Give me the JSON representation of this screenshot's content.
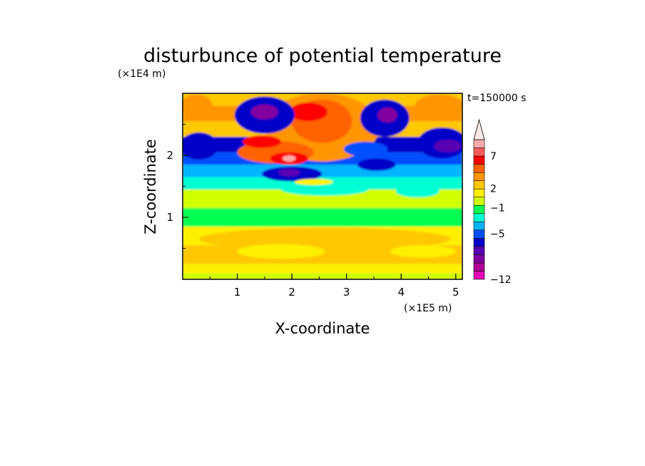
{
  "chart_data": {
    "type": "heatmap",
    "title": "disturbunce of potential temperature",
    "time_label": "t=150000 s",
    "xlabel": "X-coordinate",
    "ylabel": "Z-coordinate",
    "x_unit": "(×1E5 m)",
    "z_unit": "(×1E4 m)",
    "xlim": [
      0,
      5.12
    ],
    "zlim": [
      0,
      3.0
    ],
    "x_ticks": [
      1,
      2,
      3,
      4,
      5
    ],
    "x_tick_labels": [
      "1",
      "2",
      "3",
      "4",
      "5"
    ],
    "z_ticks": [
      1,
      2
    ],
    "z_tick_labels": [
      "1",
      "2"
    ],
    "colorbar": {
      "levels": [
        -12,
        -5,
        -1,
        2,
        7
      ],
      "level_labels": [
        "−12",
        "−5",
        "−1",
        "2",
        "7"
      ],
      "colors": [
        "#e600b4",
        "#b4009a",
        "#8200a0",
        "#5a00b4",
        "#0000c8",
        "#0050ff",
        "#00b4ff",
        "#00ffd2",
        "#00ff50",
        "#d2ff00",
        "#fff000",
        "#ffc800",
        "#ff9600",
        "#ff6400",
        "#ff0000",
        "#ff5a5a",
        "#ffaaaa"
      ],
      "extend_top_color": "#ffe6e6"
    },
    "contour_bands": [
      {
        "zmin": 0.0,
        "zmax": 0.1,
        "color": "#d2ff00"
      },
      {
        "zmin": 0.1,
        "zmax": 0.25,
        "color": "#fff000"
      },
      {
        "zmin": 0.25,
        "zmax": 0.55,
        "color": "#ffc800"
      },
      {
        "zmin": 0.55,
        "zmax": 0.85,
        "color": "#fff000"
      },
      {
        "zmin": 0.85,
        "zmax": 1.15,
        "color": "#00ff50"
      },
      {
        "zmin": 1.15,
        "zmax": 1.45,
        "color": "#d2ff00"
      },
      {
        "zmin": 1.45,
        "zmax": 1.65,
        "color": "#00ffd2"
      },
      {
        "zmin": 1.65,
        "zmax": 1.85,
        "color": "#00b4ff"
      },
      {
        "zmin": 1.85,
        "zmax": 2.05,
        "color": "#0050ff"
      },
      {
        "zmin": 2.05,
        "zmax": 2.3,
        "color": "#0000c8"
      },
      {
        "zmin": 2.3,
        "zmax": 2.55,
        "color": "#ffc800"
      },
      {
        "zmin": 2.55,
        "zmax": 2.8,
        "color": "#ff9600"
      },
      {
        "zmin": 2.8,
        "zmax": 3.0,
        "color": "#ffc800"
      }
    ],
    "contour_blobs": [
      {
        "x": 2.55,
        "z": 2.45,
        "rx": 1.05,
        "rz": 0.55,
        "color": "#ff9600"
      },
      {
        "x": 2.55,
        "z": 2.55,
        "rx": 0.55,
        "rz": 0.35,
        "color": "#ff6400"
      },
      {
        "x": 1.7,
        "z": 2.05,
        "rx": 0.7,
        "rz": 0.18,
        "color": "#ff6400"
      },
      {
        "x": 1.95,
        "z": 1.95,
        "rx": 0.35,
        "rz": 0.1,
        "color": "#ff0000"
      },
      {
        "x": 1.95,
        "z": 1.95,
        "rx": 0.12,
        "rz": 0.05,
        "color": "#ffaaaa"
      },
      {
        "x": 1.45,
        "z": 2.22,
        "rx": 0.35,
        "rz": 0.1,
        "color": "#ff0000"
      },
      {
        "x": 2.3,
        "z": 2.7,
        "rx": 0.35,
        "rz": 0.15,
        "color": "#ff0000"
      },
      {
        "x": 1.5,
        "z": 2.65,
        "rx": 0.55,
        "rz": 0.3,
        "color": "#0000c8"
      },
      {
        "x": 1.5,
        "z": 2.7,
        "rx": 0.25,
        "rz": 0.12,
        "color": "#8200a0"
      },
      {
        "x": 2.0,
        "z": 1.7,
        "rx": 0.55,
        "rz": 0.12,
        "color": "#0000c8"
      },
      {
        "x": 1.95,
        "z": 1.72,
        "rx": 0.2,
        "rz": 0.06,
        "color": "#5a00b4"
      },
      {
        "x": 3.7,
        "z": 2.6,
        "rx": 0.45,
        "rz": 0.3,
        "color": "#0000c8"
      },
      {
        "x": 3.75,
        "z": 2.65,
        "rx": 0.18,
        "rz": 0.12,
        "color": "#8200a0"
      },
      {
        "x": 3.35,
        "z": 2.1,
        "rx": 0.4,
        "rz": 0.12,
        "color": "#0050ff"
      },
      {
        "x": 3.55,
        "z": 1.85,
        "rx": 0.35,
        "rz": 0.1,
        "color": "#0000c8"
      },
      {
        "x": 0.3,
        "z": 2.15,
        "rx": 0.35,
        "rz": 0.22,
        "color": "#0000c8"
      },
      {
        "x": 4.75,
        "z": 2.2,
        "rx": 0.45,
        "rz": 0.25,
        "color": "#0000c8"
      },
      {
        "x": 4.85,
        "z": 2.15,
        "rx": 0.25,
        "rz": 0.1,
        "color": "#5a00b4"
      },
      {
        "x": 4.7,
        "z": 2.8,
        "rx": 0.45,
        "rz": 0.18,
        "color": "#ff9600"
      },
      {
        "x": 0.25,
        "z": 2.8,
        "rx": 0.3,
        "rz": 0.18,
        "color": "#ff9600"
      },
      {
        "x": 2.6,
        "z": 1.45,
        "rx": 0.8,
        "rz": 0.1,
        "color": "#00ffd2"
      },
      {
        "x": 4.3,
        "z": 1.42,
        "rx": 0.4,
        "rz": 0.1,
        "color": "#00ffd2"
      },
      {
        "x": 2.4,
        "z": 1.57,
        "rx": 0.35,
        "rz": 0.05,
        "color": "#fff000"
      },
      {
        "x": 2.6,
        "z": 0.65,
        "rx": 2.3,
        "rz": 0.18,
        "color": "#ffc800"
      },
      {
        "x": 1.8,
        "z": 0.45,
        "rx": 0.8,
        "rz": 0.12,
        "color": "#fff000"
      },
      {
        "x": 4.4,
        "z": 0.45,
        "rx": 0.6,
        "rz": 0.1,
        "color": "#fff000"
      }
    ]
  }
}
